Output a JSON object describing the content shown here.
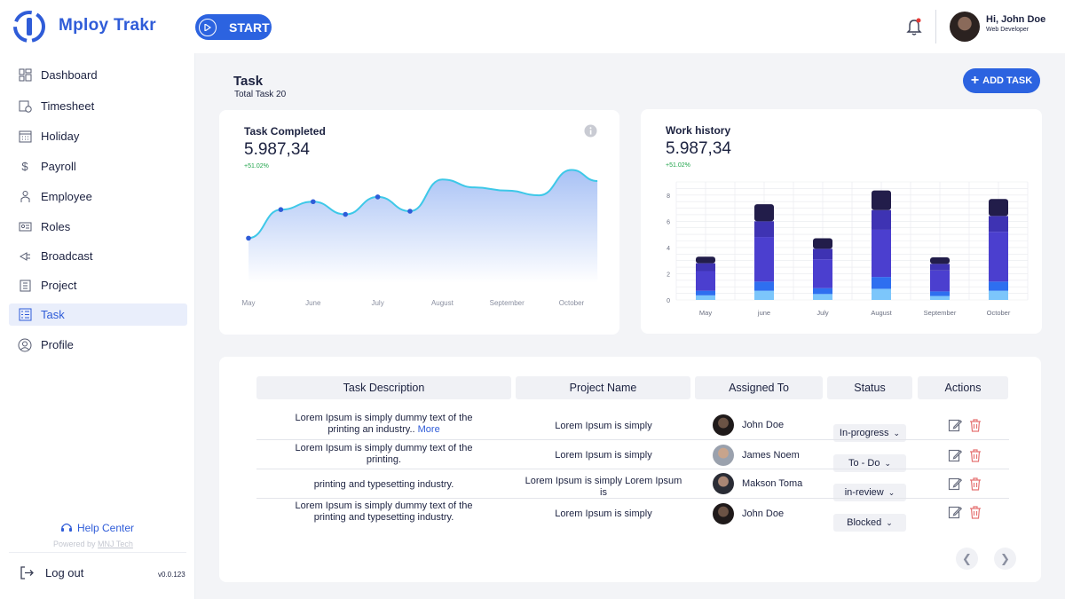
{
  "app": {
    "brand": "Mploy Trakr",
    "start_label": "START"
  },
  "user": {
    "greeting": "Hi, John Doe",
    "role": "Web Developer"
  },
  "sidebar": {
    "items": [
      {
        "label": "Dashboard",
        "icon": "dashboard-icon"
      },
      {
        "label": "Timesheet",
        "icon": "timesheet-icon"
      },
      {
        "label": "Holiday",
        "icon": "calendar-icon"
      },
      {
        "label": "Payroll",
        "icon": "dollar-icon"
      },
      {
        "label": "Employee",
        "icon": "employee-icon"
      },
      {
        "label": "Roles",
        "icon": "roles-icon"
      },
      {
        "label": "Broadcast",
        "icon": "broadcast-icon"
      },
      {
        "label": "Project",
        "icon": "project-icon"
      },
      {
        "label": "Task",
        "icon": "task-icon"
      },
      {
        "label": "Profile",
        "icon": "profile-icon"
      }
    ],
    "active": "Task",
    "help": "Help Center",
    "powered_prefix": "Powered by",
    "powered_by": "MNJ Tech",
    "logout": "Log out",
    "version": "v0.0.123"
  },
  "page": {
    "title": "Task",
    "subtitle": "Total Task 20",
    "add_label": "ADD TASK"
  },
  "colors": {
    "accent": "#2c63e0",
    "positive": "#1fa44a",
    "line": "#3ec8e8",
    "dark_bar": "#221d4a",
    "mid_bar": "#3e33b3",
    "violet_bar": "#4b3fcf",
    "blue_bar": "#2e6ff0",
    "light_bar": "#7cc6fb"
  },
  "chart_data": [
    {
      "type": "area",
      "title": "Task Completed",
      "value": "5.987,34",
      "delta": "+51.02%",
      "categories": [
        "May",
        "June",
        "July",
        "August",
        "September",
        "October"
      ],
      "x": [
        0,
        0.5,
        1,
        1.5,
        2,
        2.5,
        3,
        3.5,
        4,
        4.5,
        5,
        5.4
      ],
      "y": [
        30,
        48,
        53,
        45,
        56,
        47,
        67,
        62,
        60,
        57,
        73,
        66
      ],
      "markers": [
        0,
        1,
        2,
        3,
        4,
        5
      ],
      "ylim": [
        0,
        80
      ]
    },
    {
      "type": "bar",
      "title": "Work history",
      "value": "5.987,34",
      "delta": "+51.02%",
      "categories": [
        "May",
        "june",
        "July",
        "August",
        "September",
        "October"
      ],
      "yticks": [
        0,
        2,
        4,
        6,
        8
      ],
      "ylim": [
        0,
        9
      ],
      "series": [
        {
          "name": "light",
          "values": [
            0.35,
            0.7,
            0.45,
            0.85,
            0.3,
            0.7
          ]
        },
        {
          "name": "blue",
          "values": [
            0.35,
            0.7,
            0.45,
            0.9,
            0.35,
            0.7
          ]
        },
        {
          "name": "violet",
          "values": [
            1.5,
            3.4,
            2.2,
            3.6,
            1.6,
            3.8
          ]
        },
        {
          "name": "mid",
          "values": [
            0.6,
            1.2,
            0.8,
            1.5,
            0.5,
            1.2
          ]
        },
        {
          "name": "dark",
          "values": [
            0.5,
            1.3,
            0.8,
            1.5,
            0.5,
            1.3
          ]
        }
      ]
    }
  ],
  "table": {
    "headers": [
      "Task Description",
      "Project Name",
      "Assigned To",
      "Status",
      "Actions"
    ],
    "more_label": "More",
    "rows": [
      {
        "desc": "Lorem Ipsum is simply dummy text of the printing an  industry..",
        "more": true,
        "project": "Lorem Ipsum is simply",
        "assignee": "John Doe",
        "status": "In-progress"
      },
      {
        "desc": "Lorem Ipsum is simply dummy text of the printing.",
        "more": false,
        "project": "Lorem Ipsum is simply",
        "assignee": "James Noem",
        "status": "To - Do"
      },
      {
        "desc": "printing and typesetting industry.",
        "more": false,
        "project": "Lorem Ipsum is simply Lorem Ipsum is",
        "assignee": "Makson Toma",
        "status": "in-review"
      },
      {
        "desc": "Lorem Ipsum is simply dummy text of the printing and typesetting industry.",
        "more": false,
        "project": "Lorem Ipsum is simply",
        "assignee": "John Doe",
        "status": "Blocked"
      }
    ]
  }
}
